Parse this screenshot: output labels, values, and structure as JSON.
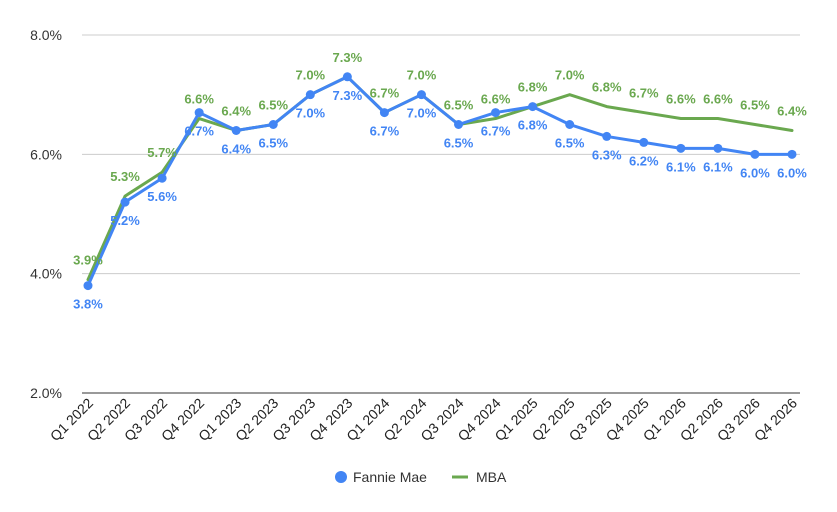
{
  "chart_data": {
    "type": "line",
    "title": "",
    "xlabel": "",
    "ylabel": "",
    "ylim": [
      2.0,
      8.0
    ],
    "yticks": [
      "2.0%",
      "4.0%",
      "6.0%",
      "8.0%"
    ],
    "ytick_values": [
      2.0,
      4.0,
      6.0,
      8.0
    ],
    "grid": true,
    "legend_position": "bottom",
    "categories": [
      "Q1 2022",
      "Q2 2022",
      "Q3 2022",
      "Q4 2022",
      "Q1 2023",
      "Q2 2023",
      "Q3 2023",
      "Q4 2023",
      "Q1 2024",
      "Q2 2024",
      "Q3 2024",
      "Q4 2024",
      "Q1 2025",
      "Q2 2025",
      "Q3 2025",
      "Q4 2025",
      "Q1 2026",
      "Q2 2026",
      "Q3 2026",
      "Q4 2026"
    ],
    "series": [
      {
        "name": "Fannie Mae",
        "color": "#4285f4",
        "markers": true,
        "label_position": "below",
        "values": [
          3.8,
          5.2,
          5.6,
          6.7,
          6.4,
          6.5,
          7.0,
          7.3,
          6.7,
          7.0,
          6.5,
          6.7,
          6.8,
          6.5,
          6.3,
          6.2,
          6.1,
          6.1,
          6.0,
          6.0
        ],
        "labels": [
          "3.8%",
          "5.2%",
          "5.6%",
          "6.7%",
          "6.4%",
          "6.5%",
          "7.0%",
          "7.3%",
          "6.7%",
          "7.0%",
          "6.5%",
          "6.7%",
          "6.8%",
          "6.5%",
          "6.3%",
          "6.2%",
          "6.1%",
          "6.1%",
          "6.0%",
          "6.0%"
        ]
      },
      {
        "name": "MBA",
        "color": "#6aa84f",
        "markers": false,
        "label_position": "above",
        "values": [
          3.9,
          5.3,
          5.7,
          6.6,
          6.4,
          6.5,
          7.0,
          7.3,
          6.7,
          7.0,
          6.5,
          6.6,
          6.8,
          7.0,
          6.8,
          6.7,
          6.6,
          6.6,
          6.5,
          6.4
        ],
        "labels": [
          "3.9%",
          "5.3%",
          "5.7%",
          "6.6%",
          "6.4%",
          "6.5%",
          "7.0%",
          "7.3%",
          "6.7%",
          "7.0%",
          "6.5%",
          "6.6%",
          "6.8%",
          "7.0%",
          "6.8%",
          "6.7%",
          "6.6%",
          "6.6%",
          "6.5%",
          "6.4%"
        ]
      }
    ]
  }
}
